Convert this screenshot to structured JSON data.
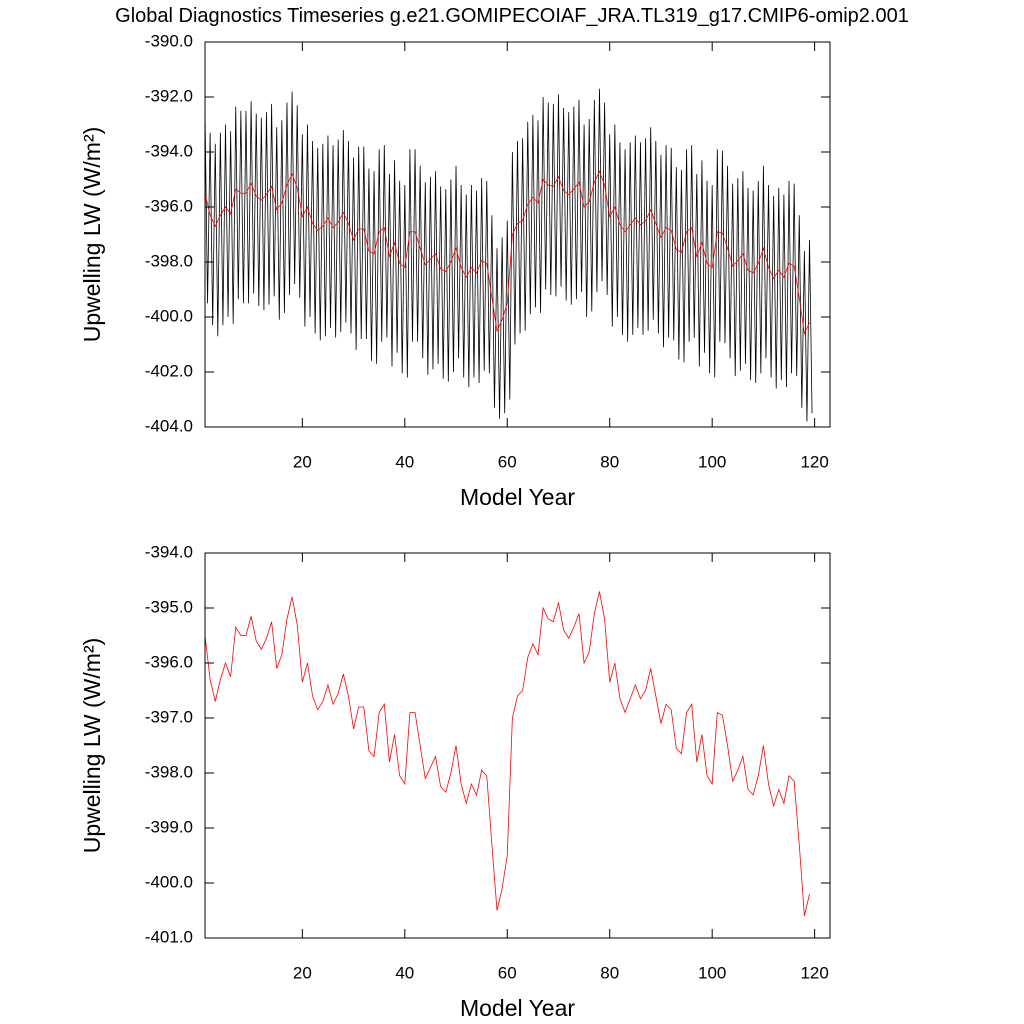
{
  "chart_data": [
    {
      "type": "line",
      "title": "Global Diagnostics Timeseries g.e21.GOMIPECOIAF_JRA.TL319_g17.CMIP6-omip2.001",
      "xlabel": "Model Year",
      "ylabel": "Upwelling LW (W/m²)",
      "xlim": [
        1,
        123
      ],
      "xticks": [
        20,
        40,
        60,
        80,
        100,
        120
      ],
      "ylim": [
        -404,
        -390
      ],
      "yticks": [
        {
          "value": -404,
          "label": "-404.0"
        },
        {
          "value": -402,
          "label": "-402.0"
        },
        {
          "value": -400,
          "label": "-400.0"
        },
        {
          "value": -398,
          "label": "-398.0"
        },
        {
          "value": -396,
          "label": "-396.0"
        },
        {
          "value": -394,
          "label": "-394.0"
        },
        {
          "value": -392,
          "label": "-392.0"
        },
        {
          "value": -390,
          "label": "-390.0"
        }
      ],
      "series": [
        {
          "color": "#000000",
          "x": [
            1,
            1.5,
            2,
            2.5,
            3,
            3.5,
            4,
            4.5,
            5,
            5.5,
            6,
            6.5,
            7,
            7.5,
            8,
            8.5,
            9,
            9.5,
            10,
            10.5,
            11,
            11.5,
            12,
            12.5,
            13,
            13.5,
            14,
            14.5,
            15,
            15.5,
            16,
            16.5,
            17,
            17.5,
            18,
            18.5,
            19,
            19.5,
            20,
            20.5,
            21,
            21.5,
            22,
            22.5,
            23,
            23.5,
            24,
            24.5,
            25,
            25.5,
            26,
            26.5,
            27,
            27.5,
            28,
            28.5,
            29,
            29.5,
            30,
            30.5,
            31,
            31.5,
            32,
            32.5,
            33,
            33.5,
            34,
            34.5,
            35,
            35.5,
            36,
            36.5,
            37,
            37.5,
            38,
            38.5,
            39,
            39.5,
            40,
            40.5,
            41,
            41.5,
            42,
            42.5,
            43,
            43.5,
            44,
            44.5,
            45,
            45.5,
            46,
            46.5,
            47,
            47.5,
            48,
            48.5,
            49,
            49.5,
            50,
            50.5,
            51,
            51.5,
            52,
            52.5,
            53,
            53.5,
            54,
            54.5,
            55,
            55.5,
            56,
            56.5,
            57,
            57.5,
            58,
            58.5,
            59,
            59.5,
            60,
            60.5,
            61,
            61.5,
            62,
            62.5,
            63,
            63.5,
            64,
            64.5,
            65,
            65.5,
            66,
            66.5,
            67,
            67.5,
            68,
            68.5,
            69,
            69.5,
            70,
            70.5,
            71,
            71.5,
            72,
            72.5,
            73,
            73.5,
            74,
            74.5,
            75,
            75.5,
            76,
            76.5,
            77,
            77.5,
            78,
            78.5,
            79,
            79.5,
            80,
            80.5,
            81,
            81.5,
            82,
            82.5,
            83,
            83.5,
            84,
            84.5,
            85,
            85.5,
            86,
            86.5,
            87,
            87.5,
            88,
            88.5,
            89,
            89.5,
            90,
            90.5,
            91,
            91.5,
            92,
            92.5,
            93,
            93.5,
            94,
            94.5,
            95,
            95.5,
            96,
            96.5,
            97,
            97.5,
            98,
            98.5,
            99,
            99.5,
            100,
            100.5,
            101,
            101.5,
            102,
            102.5,
            103,
            103.5,
            104,
            104.5,
            105,
            105.5,
            106,
            106.5,
            107,
            107.5,
            108,
            108.5,
            109,
            109.5,
            110,
            110.5,
            111,
            111.5,
            112,
            112.5,
            113,
            113.5,
            114,
            114.5,
            115,
            115.5,
            116,
            116.5,
            117,
            117.5,
            118,
            118.5,
            119,
            119.5
          ],
          "values": [
            -392.5,
            -399.5,
            -393.3,
            -400.3,
            -393.7,
            -400.7,
            -393.3,
            -400.3,
            -393.0,
            -400.0,
            -393.25,
            -400.25,
            -392.35,
            -399.35,
            -392.5,
            -399.5,
            -392.5,
            -399.5,
            -392.15,
            -399.15,
            -392.6,
            -399.6,
            -392.75,
            -399.75,
            -392.55,
            -399.55,
            -392.25,
            -399.25,
            -393.1,
            -400.1,
            -392.85,
            -399.85,
            -392.2,
            -399.2,
            -391.8,
            -398.8,
            -392.3,
            -399.3,
            -393.35,
            -400.35,
            -393.0,
            -400.0,
            -393.6,
            -400.6,
            -393.85,
            -400.85,
            -393.7,
            -400.7,
            -393.4,
            -400.4,
            -393.75,
            -400.75,
            -393.55,
            -400.55,
            -393.2,
            -400.2,
            -393.6,
            -400.6,
            -394.2,
            -401.2,
            -393.8,
            -400.8,
            -393.8,
            -400.8,
            -394.6,
            -401.6,
            -394.7,
            -401.7,
            -393.9,
            -400.9,
            -393.75,
            -400.75,
            -394.8,
            -401.8,
            -394.3,
            -401.3,
            -395.05,
            -402.05,
            -395.2,
            -402.2,
            -393.9,
            -400.9,
            -393.9,
            -400.9,
            -394.5,
            -401.5,
            -395.1,
            -402.1,
            -394.9,
            -401.9,
            -394.7,
            -401.7,
            -395.25,
            -402.25,
            -395.35,
            -402.35,
            -395.0,
            -402.0,
            -394.5,
            -401.5,
            -395.2,
            -402.2,
            -395.55,
            -402.55,
            -395.2,
            -402.2,
            -395.4,
            -402.4,
            -394.95,
            -401.95,
            -395.05,
            -402.05,
            -396.3,
            -403.3,
            -397.5,
            -403.7,
            -397.1,
            -403.5,
            -396.5,
            -403.0,
            -394.0,
            -401.0,
            -393.6,
            -400.6,
            -393.5,
            -400.5,
            -392.9,
            -399.9,
            -392.65,
            -399.65,
            -392.85,
            -399.85,
            -392.0,
            -399.0,
            -392.2,
            -399.2,
            -392.25,
            -399.25,
            -391.9,
            -398.9,
            -392.4,
            -399.4,
            -392.55,
            -399.55,
            -392.35,
            -399.35,
            -392.1,
            -399.1,
            -393.0,
            -400.0,
            -392.8,
            -399.8,
            -392.1,
            -399.1,
            -391.7,
            -398.7,
            -392.2,
            -399.2,
            -393.35,
            -400.35,
            -393.0,
            -400.0,
            -393.65,
            -400.65,
            -393.9,
            -400.9,
            -393.65,
            -400.65,
            -393.4,
            -400.4,
            -393.65,
            -400.65,
            -393.5,
            -400.5,
            -393.1,
            -400.1,
            -393.6,
            -400.6,
            -394.1,
            -401.1,
            -393.75,
            -400.75,
            -393.85,
            -400.85,
            -394.55,
            -401.55,
            -394.65,
            -401.65,
            -393.9,
            -400.9,
            -393.75,
            -400.75,
            -394.8,
            -401.8,
            -394.3,
            -401.3,
            -395.05,
            -402.05,
            -395.2,
            -402.2,
            -393.9,
            -400.9,
            -393.95,
            -400.95,
            -394.5,
            -401.5,
            -395.15,
            -402.15,
            -394.95,
            -401.95,
            -394.7,
            -401.7,
            -395.3,
            -402.3,
            -395.4,
            -402.4,
            -395.05,
            -402.05,
            -394.5,
            -401.5,
            -395.2,
            -402.2,
            -395.6,
            -402.6,
            -395.3,
            -402.3,
            -395.55,
            -402.55,
            -395.05,
            -402.05,
            -395.15,
            -402.15,
            -396.3,
            -403.3,
            -397.6,
            -403.8,
            -397.2,
            -403.5
          ]
        },
        {
          "color": "#ff0000",
          "x": [
            1,
            2,
            3,
            4,
            5,
            6,
            7,
            8,
            9,
            10,
            11,
            12,
            13,
            14,
            15,
            16,
            17,
            18,
            19,
            20,
            21,
            22,
            23,
            24,
            25,
            26,
            27,
            28,
            29,
            30,
            31,
            32,
            33,
            34,
            35,
            36,
            37,
            38,
            39,
            40,
            41,
            42,
            43,
            44,
            45,
            46,
            47,
            48,
            49,
            50,
            51,
            52,
            53,
            54,
            55,
            56,
            57,
            58,
            59,
            60,
            61,
            62,
            63,
            64,
            65,
            66,
            67,
            68,
            69,
            70,
            71,
            72,
            73,
            74,
            75,
            76,
            77,
            78,
            79,
            80,
            81,
            82,
            83,
            84,
            85,
            86,
            87,
            88,
            89,
            90,
            91,
            92,
            93,
            94,
            95,
            96,
            97,
            98,
            99,
            100,
            101,
            102,
            103,
            104,
            105,
            106,
            107,
            108,
            109,
            110,
            111,
            112,
            113,
            114,
            115,
            116,
            117,
            118,
            119
          ],
          "values": [
            -395.5,
            -396.3,
            -396.7,
            -396.3,
            -396.0,
            -396.25,
            -395.35,
            -395.5,
            -395.5,
            -395.15,
            -395.6,
            -395.75,
            -395.55,
            -395.25,
            -396.1,
            -395.85,
            -395.2,
            -394.8,
            -395.3,
            -396.35,
            -396.0,
            -396.6,
            -396.85,
            -396.7,
            -396.4,
            -396.75,
            -396.55,
            -396.2,
            -396.6,
            -397.2,
            -396.8,
            -396.8,
            -397.6,
            -397.7,
            -396.9,
            -396.75,
            -397.8,
            -397.3,
            -398.05,
            -398.2,
            -396.9,
            -396.9,
            -397.5,
            -398.1,
            -397.9,
            -397.7,
            -398.25,
            -398.35,
            -398.0,
            -397.5,
            -398.2,
            -398.55,
            -398.2,
            -398.4,
            -397.95,
            -398.05,
            -399.3,
            -400.5,
            -400.1,
            -399.5,
            -397.0,
            -396.6,
            -396.5,
            -395.9,
            -395.65,
            -395.85,
            -395.0,
            -395.2,
            -395.25,
            -394.9,
            -395.4,
            -395.55,
            -395.35,
            -395.1,
            -396.0,
            -395.8,
            -395.1,
            -394.7,
            -395.2,
            -396.35,
            -396.0,
            -396.65,
            -396.9,
            -396.65,
            -396.4,
            -396.65,
            -396.5,
            -396.1,
            -396.6,
            -397.1,
            -396.75,
            -396.85,
            -397.55,
            -397.65,
            -396.9,
            -396.75,
            -397.8,
            -397.3,
            -398.05,
            -398.2,
            -396.9,
            -396.95,
            -397.5,
            -398.15,
            -397.95,
            -397.7,
            -398.3,
            -398.4,
            -398.05,
            -397.5,
            -398.2,
            -398.6,
            -398.3,
            -398.55,
            -398.05,
            -398.15,
            -399.3,
            -400.6,
            -400.2
          ]
        }
      ]
    },
    {
      "type": "line",
      "xlabel": "Model Year",
      "ylabel": "Upwelling LW (W/m²)",
      "xlim": [
        1,
        123
      ],
      "xticks": [
        20,
        40,
        60,
        80,
        100,
        120
      ],
      "ylim": [
        -401,
        -394
      ],
      "yticks": [
        {
          "value": -401,
          "label": "-401.0"
        },
        {
          "value": -400,
          "label": "-400.0"
        },
        {
          "value": -399,
          "label": "-399.0"
        },
        {
          "value": -398,
          "label": "-398.0"
        },
        {
          "value": -397,
          "label": "-397.0"
        },
        {
          "value": -396,
          "label": "-396.0"
        },
        {
          "value": -395,
          "label": "-395.0"
        },
        {
          "value": -394,
          "label": "-394.0"
        }
      ],
      "series": [
        {
          "color": "#ff0000",
          "x": [
            1,
            2,
            3,
            4,
            5,
            6,
            7,
            8,
            9,
            10,
            11,
            12,
            13,
            14,
            15,
            16,
            17,
            18,
            19,
            20,
            21,
            22,
            23,
            24,
            25,
            26,
            27,
            28,
            29,
            30,
            31,
            32,
            33,
            34,
            35,
            36,
            37,
            38,
            39,
            40,
            41,
            42,
            43,
            44,
            45,
            46,
            47,
            48,
            49,
            50,
            51,
            52,
            53,
            54,
            55,
            56,
            57,
            58,
            59,
            60,
            61,
            62,
            63,
            64,
            65,
            66,
            67,
            68,
            69,
            70,
            71,
            72,
            73,
            74,
            75,
            76,
            77,
            78,
            79,
            80,
            81,
            82,
            83,
            84,
            85,
            86,
            87,
            88,
            89,
            90,
            91,
            92,
            93,
            94,
            95,
            96,
            97,
            98,
            99,
            100,
            101,
            102,
            103,
            104,
            105,
            106,
            107,
            108,
            109,
            110,
            111,
            112,
            113,
            114,
            115,
            116,
            117,
            118,
            119
          ],
          "values": [
            -395.5,
            -396.3,
            -396.7,
            -396.3,
            -396.0,
            -396.25,
            -395.35,
            -395.5,
            -395.5,
            -395.15,
            -395.6,
            -395.75,
            -395.55,
            -395.25,
            -396.1,
            -395.85,
            -395.2,
            -394.8,
            -395.3,
            -396.35,
            -396.0,
            -396.6,
            -396.85,
            -396.7,
            -396.4,
            -396.75,
            -396.55,
            -396.2,
            -396.6,
            -397.2,
            -396.8,
            -396.8,
            -397.6,
            -397.7,
            -396.9,
            -396.75,
            -397.8,
            -397.3,
            -398.05,
            -398.2,
            -396.9,
            -396.9,
            -397.5,
            -398.1,
            -397.9,
            -397.7,
            -398.25,
            -398.35,
            -398.0,
            -397.5,
            -398.2,
            -398.55,
            -398.2,
            -398.4,
            -397.95,
            -398.05,
            -399.3,
            -400.5,
            -400.1,
            -399.5,
            -397.0,
            -396.6,
            -396.5,
            -395.9,
            -395.65,
            -395.85,
            -395.0,
            -395.2,
            -395.25,
            -394.9,
            -395.4,
            -395.55,
            -395.35,
            -395.1,
            -396.0,
            -395.8,
            -395.1,
            -394.7,
            -395.2,
            -396.35,
            -396.0,
            -396.65,
            -396.9,
            -396.65,
            -396.4,
            -396.65,
            -396.5,
            -396.1,
            -396.6,
            -397.1,
            -396.75,
            -396.85,
            -397.55,
            -397.65,
            -396.9,
            -396.75,
            -397.8,
            -397.3,
            -398.05,
            -398.2,
            -396.9,
            -396.95,
            -397.5,
            -398.15,
            -397.95,
            -397.7,
            -398.3,
            -398.4,
            -398.05,
            -397.5,
            -398.2,
            -398.6,
            -398.3,
            -398.55,
            -398.05,
            -398.15,
            -399.3,
            -400.6,
            -400.2
          ]
        }
      ]
    }
  ]
}
